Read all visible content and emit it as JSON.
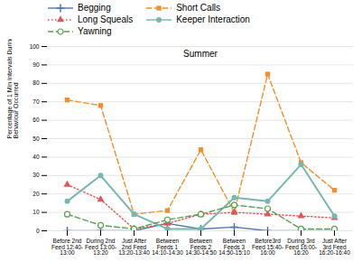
{
  "chart_data": {
    "type": "line",
    "title": "Summer",
    "ylabel": "Percentage of 1 Min Intervals During which the\nBehaviour Occurred",
    "categories": [
      "Before 2nd\nFeed 12:40-\n13:00",
      "During 2nd\nFeed 13:00-\n13:20",
      "Just After\n2nd Feed\n13:20-13:40",
      "Between\nFeeds 1\n14:10-14:30",
      "Between\nFeeds 2\n14:30-14:50",
      "Between\nFeeds 3\n14:50-15:10",
      "Before3rd\nFeed 15:40-\n16:00",
      "During 3rd\nFeed 16:00-\n16:20",
      "Just After\n3rd Feed\n16:20-16:40"
    ],
    "series": [
      {
        "name": "Begging",
        "values": [
          0,
          0,
          0,
          4,
          1,
          2,
          0,
          0,
          0
        ],
        "marker": "plus",
        "line_style": "solid"
      },
      {
        "name": "Short Calls",
        "values": [
          71,
          68,
          9,
          11,
          44,
          10,
          85,
          37,
          22
        ],
        "marker": "square",
        "line_style": "dashed"
      },
      {
        "name": "Long Squeals",
        "values": [
          25,
          17,
          1,
          4,
          9,
          10,
          9,
          8,
          7
        ],
        "marker": "triangle",
        "line_style": "dotted"
      },
      {
        "name": "Keeper Interaction",
        "values": [
          16,
          30,
          9,
          1,
          1,
          18,
          16,
          36,
          8
        ],
        "marker": "circle",
        "line_style": "solid"
      },
      {
        "name": "Yawning",
        "values": [
          9,
          3,
          1,
          6,
          9,
          14,
          12,
          1,
          1
        ],
        "marker": "open_circle",
        "line_style": "dashed"
      }
    ],
    "ylim": [
      0,
      100
    ],
    "yticks": [
      0,
      10,
      20,
      30,
      40,
      50,
      60,
      70,
      80,
      90,
      100
    ],
    "grid": true,
    "legend": "top"
  }
}
